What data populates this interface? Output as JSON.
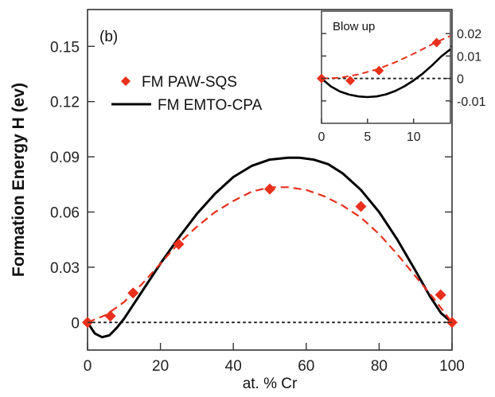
{
  "chart_data": [
    {
      "type": "line",
      "panel_label": "(b)",
      "xlabel": "at. % Cr",
      "ylabel": "Formation Energy   H (ev)",
      "xlim": [
        0,
        100
      ],
      "ylim": [
        -0.015,
        0.17
      ],
      "x_ticks": [
        0,
        20,
        40,
        60,
        80,
        100
      ],
      "y_ticks": [
        0,
        0.03,
        0.06,
        0.09,
        0.12,
        0.15
      ],
      "x_tick_labels": [
        "0",
        "20",
        "40",
        "60",
        "80",
        "100"
      ],
      "y_tick_labels": [
        "0",
        "0.03",
        "0.06",
        "0.09",
        "0.12",
        "0.15"
      ],
      "zero_line": "dotted",
      "legend": [
        {
          "label": "FM PAW-SQS",
          "style": "red-diamond"
        },
        {
          "label": "FM EMTO-CPA",
          "style": "black-solid"
        }
      ],
      "series": [
        {
          "name": "FM EMTO-CPA",
          "color": "#000000",
          "x": [
            0,
            2,
            4,
            6,
            8,
            10,
            12,
            15,
            20,
            25,
            30,
            35,
            40,
            45,
            50,
            55,
            58,
            62,
            66,
            70,
            75,
            80,
            85,
            90,
            94,
            97,
            100
          ],
          "y": [
            0,
            -0.006,
            -0.008,
            -0.007,
            -0.003,
            0.002,
            0.008,
            0.017,
            0.032,
            0.046,
            0.059,
            0.07,
            0.079,
            0.085,
            0.0885,
            0.0895,
            0.0895,
            0.0885,
            0.086,
            0.081,
            0.072,
            0.06,
            0.045,
            0.028,
            0.014,
            0.005,
            0
          ]
        },
        {
          "name": "FM PAW-SQS fit",
          "color": "#e8301c",
          "dashed": true,
          "x": [
            0,
            5,
            10,
            15,
            20,
            25,
            30,
            35,
            40,
            45,
            50,
            55,
            60,
            65,
            70,
            75,
            80,
            85,
            90,
            95,
            100
          ],
          "y": [
            0,
            0.004,
            0.011,
            0.021,
            0.032,
            0.043,
            0.052,
            0.06,
            0.066,
            0.071,
            0.0735,
            0.0735,
            0.072,
            0.0685,
            0.0635,
            0.057,
            0.048,
            0.037,
            0.025,
            0.013,
            0
          ]
        },
        {
          "name": "FM PAW-SQS",
          "color": "#e8301c",
          "marker": "diamond",
          "x": [
            0,
            6.25,
            12.5,
            25,
            50,
            75,
            96.875,
            100
          ],
          "y": [
            0,
            0.0035,
            0.016,
            0.0425,
            0.0725,
            0.063,
            0.015,
            0
          ]
        }
      ]
    },
    {
      "type": "line",
      "title": "Blow up",
      "xlim": [
        0,
        14
      ],
      "ylim": [
        -0.02,
        0.03
      ],
      "x_ticks": [
        0,
        5,
        10
      ],
      "y_ticks": [
        -0.01,
        0,
        0.01,
        0.02
      ],
      "x_tick_labels": [
        "0",
        "5",
        "10"
      ],
      "y_tick_labels": [
        "-0.01",
        "0",
        "0.01",
        "0.02"
      ],
      "y_axis_side": "right",
      "zero_line": "dotted",
      "series": [
        {
          "name": "FM EMTO-CPA",
          "color": "#000000",
          "x": [
            0,
            1,
            2,
            3,
            4,
            5,
            6,
            7,
            8,
            9,
            10,
            11,
            12,
            13,
            14
          ],
          "y": [
            0,
            -0.0035,
            -0.0058,
            -0.0072,
            -0.008,
            -0.0083,
            -0.008,
            -0.0071,
            -0.0056,
            -0.0035,
            -0.0009,
            0.0022,
            0.0058,
            0.0098,
            0.013
          ]
        },
        {
          "name": "FM PAW-SQS fit",
          "color": "#e8301c",
          "dashed": true,
          "x": [
            0,
            2,
            4,
            6,
            8,
            10,
            12,
            14
          ],
          "y": [
            0,
            0.0003,
            0.0018,
            0.004,
            0.0072,
            0.011,
            0.0152,
            0.019
          ]
        },
        {
          "name": "FM PAW-SQS",
          "color": "#e8301c",
          "marker": "diamond",
          "x": [
            0,
            3.125,
            6.25,
            12.5
          ],
          "y": [
            0,
            -0.001,
            0.0035,
            0.016
          ]
        }
      ]
    }
  ]
}
